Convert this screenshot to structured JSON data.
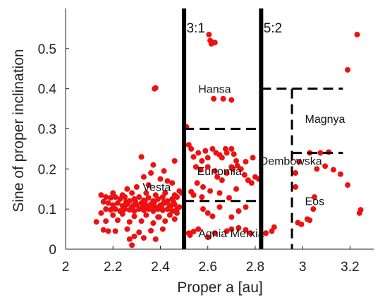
{
  "chart_data": {
    "type": "scatter",
    "xlabel": "Proper a [au]",
    "ylabel": "Sine of proper inclination",
    "xlim": [
      2.0,
      3.3
    ],
    "ylim": [
      0.0,
      0.6
    ],
    "xticks": [
      2,
      2.2,
      2.4,
      2.6,
      2.8,
      3,
      3.2
    ],
    "xtick_labels": [
      "2",
      "2.2",
      "2.4",
      "2.6",
      "2.8",
      "3",
      "3.2"
    ],
    "yticks": [
      0,
      0.1,
      0.2,
      0.3,
      0.4,
      0.5
    ],
    "ytick_labels": [
      "0",
      "0.1",
      "0.2",
      "0.3",
      "0.4",
      "0.5"
    ],
    "point_color": "#ee1111",
    "grid": false,
    "resonances": [
      {
        "label": "3:1",
        "x": 2.5,
        "label_x": 2.51,
        "label_y": 0.54
      },
      {
        "label": "5:2",
        "x": 2.825,
        "label_x": 2.835,
        "label_y": 0.54
      }
    ],
    "region_boundaries": [
      {
        "x1": 2.5,
        "y1": 0.3,
        "x2": 2.825,
        "y2": 0.3
      },
      {
        "x1": 2.5,
        "y1": 0.12,
        "x2": 2.825,
        "y2": 0.12
      },
      {
        "x1": 2.825,
        "y1": 0.4,
        "x2": 3.17,
        "y2": 0.4
      },
      {
        "x1": 2.955,
        "y1": 0.4,
        "x2": 2.955,
        "y2": 0.0
      },
      {
        "x1": 2.955,
        "y1": 0.24,
        "x2": 3.17,
        "y2": 0.24
      }
    ],
    "region_labels": [
      {
        "text": "Hansa",
        "x": 2.56,
        "y": 0.39
      },
      {
        "text": "Magnya",
        "x": 3.01,
        "y": 0.315
      },
      {
        "text": "Eunomia",
        "x": 2.555,
        "y": 0.185
      },
      {
        "text": "Dembowska",
        "x": 2.82,
        "y": 0.21
      },
      {
        "text": "Vesta",
        "x": 2.325,
        "y": 0.145
      },
      {
        "text": "Eos",
        "x": 3.01,
        "y": 0.11
      },
      {
        "text": "Agnia Merxia",
        "x": 2.56,
        "y": 0.03
      }
    ],
    "series": [
      {
        "points": [
          [
            2.605,
            0.535
          ],
          [
            2.61,
            0.52
          ],
          [
            2.62,
            0.515
          ],
          [
            2.63,
            0.515
          ],
          [
            2.615,
            0.512
          ],
          [
            3.23,
            0.535
          ],
          [
            3.19,
            0.447
          ],
          [
            2.375,
            0.4
          ],
          [
            2.38,
            0.402
          ],
          [
            2.625,
            0.375
          ],
          [
            2.665,
            0.375
          ],
          [
            2.7,
            0.372
          ],
          [
            2.51,
            0.305
          ],
          [
            3.03,
            0.24
          ],
          [
            3.075,
            0.24
          ],
          [
            3.11,
            0.242
          ],
          [
            3.06,
            0.2
          ],
          [
            3.095,
            0.207
          ],
          [
            3.13,
            0.198
          ],
          [
            3.16,
            0.187
          ],
          [
            2.985,
            0.218
          ],
          [
            2.97,
            0.19
          ],
          [
            2.97,
            0.155
          ],
          [
            3.19,
            0.16
          ],
          [
            3.05,
            0.13
          ],
          [
            3.045,
            0.1
          ],
          [
            3.245,
            0.098
          ],
          [
            3.24,
            0.09
          ],
          [
            3.02,
            0.075
          ],
          [
            3.03,
            0.072
          ],
          [
            2.98,
            0.066
          ],
          [
            2.995,
            0.062
          ],
          [
            2.88,
            0.055
          ],
          [
            2.845,
            0.04
          ],
          [
            2.87,
            0.045
          ],
          [
            2.52,
            0.26
          ],
          [
            2.53,
            0.25
          ],
          [
            2.54,
            0.23
          ],
          [
            2.56,
            0.24
          ],
          [
            2.575,
            0.22
          ],
          [
            2.59,
            0.245
          ],
          [
            2.6,
            0.228
          ],
          [
            2.62,
            0.25
          ],
          [
            2.635,
            0.24
          ],
          [
            2.65,
            0.235
          ],
          [
            2.66,
            0.228
          ],
          [
            2.675,
            0.25
          ],
          [
            2.68,
            0.24
          ],
          [
            2.7,
            0.25
          ],
          [
            2.71,
            0.237
          ],
          [
            2.72,
            0.22
          ],
          [
            2.725,
            0.208
          ],
          [
            2.55,
            0.205
          ],
          [
            2.57,
            0.198
          ],
          [
            2.6,
            0.205
          ],
          [
            2.63,
            0.195
          ],
          [
            2.64,
            0.18
          ],
          [
            2.66,
            0.172
          ],
          [
            2.68,
            0.19
          ],
          [
            2.7,
            0.205
          ],
          [
            2.705,
            0.2
          ],
          [
            2.74,
            0.2
          ],
          [
            2.755,
            0.185
          ],
          [
            2.77,
            0.172
          ],
          [
            2.785,
            0.165
          ],
          [
            2.8,
            0.18
          ],
          [
            2.815,
            0.175
          ],
          [
            2.555,
            0.165
          ],
          [
            2.58,
            0.155
          ],
          [
            2.61,
            0.145
          ],
          [
            2.65,
            0.14
          ],
          [
            2.72,
            0.15
          ],
          [
            2.53,
            0.143
          ],
          [
            2.79,
            0.228
          ],
          [
            2.76,
            0.218
          ],
          [
            2.54,
            0.135
          ],
          [
            2.575,
            0.13
          ],
          [
            2.69,
            0.128
          ],
          [
            2.58,
            0.1
          ],
          [
            2.6,
            0.09
          ],
          [
            2.62,
            0.082
          ],
          [
            2.65,
            0.105
          ],
          [
            2.73,
            0.095
          ],
          [
            2.76,
            0.105
          ],
          [
            2.7,
            0.08
          ],
          [
            2.52,
            0.04
          ],
          [
            2.525,
            0.035
          ],
          [
            2.54,
            0.044
          ],
          [
            2.56,
            0.05
          ],
          [
            2.6,
            0.03
          ],
          [
            2.63,
            0.04
          ],
          [
            2.68,
            0.045
          ],
          [
            2.7,
            0.05
          ],
          [
            2.73,
            0.053
          ],
          [
            2.76,
            0.048
          ],
          [
            2.78,
            0.04
          ],
          [
            2.32,
            0.23
          ],
          [
            2.37,
            0.21
          ],
          [
            2.36,
            0.19
          ],
          [
            2.415,
            0.195
          ],
          [
            2.46,
            0.22
          ],
          [
            2.33,
            0.18
          ],
          [
            2.4,
            0.175
          ],
          [
            2.43,
            0.17
          ],
          [
            2.45,
            0.165
          ],
          [
            2.35,
            0.16
          ],
          [
            2.3,
            0.155
          ],
          [
            2.26,
            0.15
          ],
          [
            2.2,
            0.14
          ],
          [
            2.48,
            0.145
          ],
          [
            2.49,
            0.14
          ],
          [
            2.15,
            0.135
          ],
          [
            2.17,
            0.13
          ],
          [
            2.19,
            0.128
          ],
          [
            2.21,
            0.13
          ],
          [
            2.23,
            0.125
          ],
          [
            2.25,
            0.13
          ],
          [
            2.27,
            0.12
          ],
          [
            2.29,
            0.125
          ],
          [
            2.31,
            0.13
          ],
          [
            2.33,
            0.122
          ],
          [
            2.35,
            0.128
          ],
          [
            2.37,
            0.12
          ],
          [
            2.39,
            0.125
          ],
          [
            2.41,
            0.13
          ],
          [
            2.43,
            0.12
          ],
          [
            2.45,
            0.125
          ],
          [
            2.47,
            0.13
          ],
          [
            2.16,
            0.118
          ],
          [
            2.18,
            0.115
          ],
          [
            2.2,
            0.11
          ],
          [
            2.22,
            0.115
          ],
          [
            2.24,
            0.108
          ],
          [
            2.26,
            0.112
          ],
          [
            2.28,
            0.105
          ],
          [
            2.3,
            0.11
          ],
          [
            2.32,
            0.115
          ],
          [
            2.34,
            0.108
          ],
          [
            2.36,
            0.112
          ],
          [
            2.38,
            0.105
          ],
          [
            2.4,
            0.11
          ],
          [
            2.42,
            0.115
          ],
          [
            2.44,
            0.108
          ],
          [
            2.46,
            0.112
          ],
          [
            2.48,
            0.105
          ],
          [
            2.17,
            0.1
          ],
          [
            2.19,
            0.098
          ],
          [
            2.21,
            0.1
          ],
          [
            2.23,
            0.095
          ],
          [
            2.25,
            0.1
          ],
          [
            2.27,
            0.098
          ],
          [
            2.29,
            0.095
          ],
          [
            2.31,
            0.1
          ],
          [
            2.33,
            0.097
          ],
          [
            2.35,
            0.1
          ],
          [
            2.37,
            0.095
          ],
          [
            2.39,
            0.1
          ],
          [
            2.41,
            0.097
          ],
          [
            2.43,
            0.1
          ],
          [
            2.45,
            0.095
          ],
          [
            2.47,
            0.1
          ],
          [
            2.24,
            0.135
          ],
          [
            2.28,
            0.14
          ],
          [
            2.34,
            0.14
          ],
          [
            2.38,
            0.135
          ],
          [
            2.42,
            0.14
          ],
          [
            2.46,
            0.135
          ],
          [
            2.255,
            0.118
          ],
          [
            2.295,
            0.118
          ],
          [
            2.335,
            0.118
          ],
          [
            2.375,
            0.118
          ],
          [
            2.415,
            0.118
          ],
          [
            2.455,
            0.118
          ],
          [
            2.245,
            0.105
          ],
          [
            2.285,
            0.108
          ],
          [
            2.325,
            0.105
          ],
          [
            2.365,
            0.108
          ],
          [
            2.405,
            0.105
          ],
          [
            2.445,
            0.108
          ],
          [
            2.15,
            0.09
          ],
          [
            2.2,
            0.085
          ],
          [
            2.24,
            0.088
          ],
          [
            2.29,
            0.082
          ],
          [
            2.34,
            0.085
          ],
          [
            2.39,
            0.08
          ],
          [
            2.44,
            0.085
          ],
          [
            2.47,
            0.09
          ],
          [
            2.17,
            0.07
          ],
          [
            2.22,
            0.072
          ],
          [
            2.27,
            0.068
          ],
          [
            2.32,
            0.07
          ],
          [
            2.37,
            0.065
          ],
          [
            2.42,
            0.07
          ],
          [
            2.46,
            0.075
          ],
          [
            2.13,
            0.068
          ],
          [
            2.16,
            0.048
          ],
          [
            2.21,
            0.045
          ],
          [
            2.26,
            0.05
          ],
          [
            2.31,
            0.042
          ],
          [
            2.36,
            0.046
          ],
          [
            2.41,
            0.05
          ],
          [
            2.29,
            0.032
          ],
          [
            2.33,
            0.028
          ],
          [
            2.38,
            0.025
          ],
          [
            2.28,
            0.01
          ],
          [
            2.27,
            0.025
          ],
          [
            2.395,
            0.08
          ],
          [
            2.18,
            0.045
          ]
        ]
      }
    ]
  }
}
